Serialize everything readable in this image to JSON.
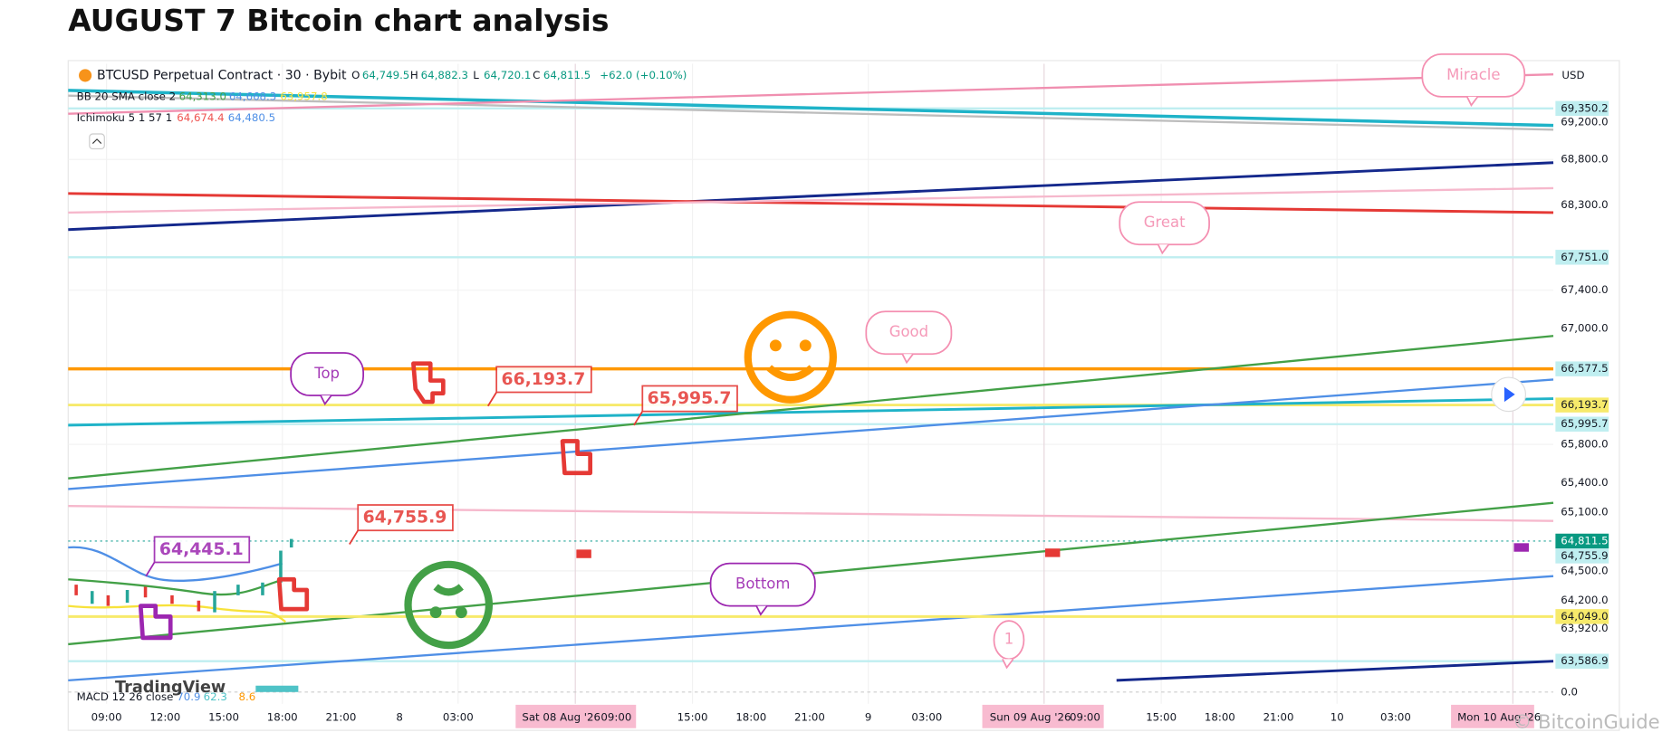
{
  "title": "AUGUST 7 Bitcoin chart analysis",
  "header": {
    "symbol": "BTCUSD Perpetual Contract · 30 · Bybit",
    "ohlc": [
      {
        "label": "O",
        "value": "64,749.5"
      },
      {
        "label": "H",
        "value": "64,882.3"
      },
      {
        "label": "L",
        "value": "64,720.1"
      },
      {
        "label": "C",
        "value": "64,811.5"
      }
    ],
    "change": "+62.0 (+0.10%)",
    "indicators": [
      {
        "name": "BB 20 SMA close 2",
        "values": [
          "64,313.0",
          "64,668.3",
          "63,957.8"
        ]
      },
      {
        "name": "Ichimoku 5 1 57 1",
        "values": [
          "64,674.4",
          "64,480.5"
        ]
      }
    ],
    "macd": {
      "name": "MACD 12 26 close",
      "values": [
        "70.9",
        "62.3",
        "8.6"
      ]
    }
  },
  "price_axis": {
    "currency": "USD",
    "labels": [
      "69,350.2",
      "69,200.0",
      "68,800.0",
      "68,300.0",
      "67,751.0",
      "67,400.0",
      "67,000.0",
      "66,577.5",
      "66,193.7",
      "65,995.7",
      "65,800.0",
      "65,400.0",
      "65,100.0",
      "64,811.5",
      "64,755.9",
      "64,500.0",
      "64,200.0",
      "64,049.0",
      "63,920.0",
      "63,586.9",
      "0.0"
    ]
  },
  "time_axis": [
    "09:00",
    "12:00",
    "15:00",
    "18:00",
    "21:00",
    "8",
    "03:00",
    "Sat 08 Aug '26",
    "09:00",
    "15:00",
    "18:00",
    "21:00",
    "9",
    "03:00",
    "Sun 09 Aug '26",
    "09:00",
    "15:00",
    "18:00",
    "21:00",
    "10",
    "03:00",
    "Mon 10 Aug '26"
  ],
  "annotations": [
    "Miracle",
    "Great",
    "Good",
    "Top",
    "Bottom",
    "1"
  ],
  "price_callouts": [
    "66,193.7",
    "65,995.7",
    "64,755.9",
    "64,445.1"
  ],
  "watermark": "TradingView",
  "credit": "© BitcoinGuide"
}
